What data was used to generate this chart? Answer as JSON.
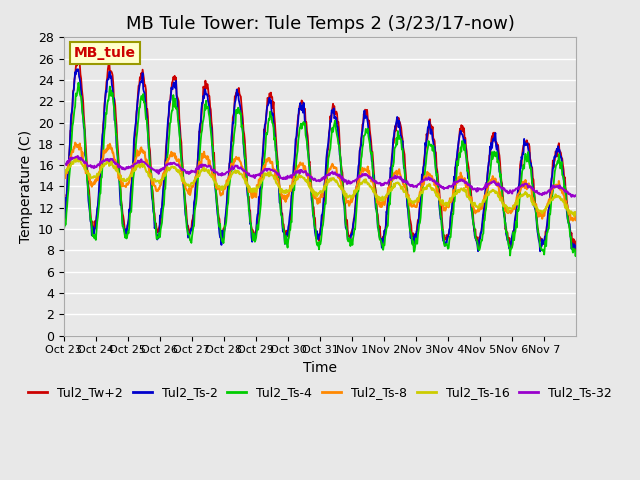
{
  "title": "MB Tule Tower: Tule Temps 2 (3/23/17-now)",
  "xlabel": "Time",
  "ylabel": "Temperature (C)",
  "ylim": [
    0,
    28
  ],
  "yticks": [
    0,
    2,
    4,
    6,
    8,
    10,
    12,
    14,
    16,
    18,
    20,
    22,
    24,
    26,
    28
  ],
  "xtick_labels": [
    "Oct 23",
    "Oct 24",
    "Oct 25",
    "Oct 26",
    "Oct 27",
    "Oct 28",
    "Oct 29",
    "Oct 30",
    "Oct 31",
    "Nov 1",
    "Nov 2",
    "Nov 3",
    "Nov 4",
    "Nov 5",
    "Nov 6",
    "Nov 7"
  ],
  "bg_color": "#e8e8e8",
  "plot_bg_color": "#e8e8e8",
  "grid_color": "#ffffff",
  "series": [
    {
      "label": "Tul2_Tw+2",
      "color": "#cc0000"
    },
    {
      "label": "Tul2_Ts-2",
      "color": "#0000cc"
    },
    {
      "label": "Tul2_Ts-4",
      "color": "#00cc00"
    },
    {
      "label": "Tul2_Ts-8",
      "color": "#ff8800"
    },
    {
      "label": "Tul2_Ts-16",
      "color": "#cccc00"
    },
    {
      "label": "Tul2_Ts-32",
      "color": "#9900cc"
    }
  ],
  "legend_box_color": "#ffffcc",
  "legend_box_edge": "#999900",
  "legend_text": "MB_tule",
  "legend_text_color": "#cc0000",
  "title_fontsize": 13,
  "axis_fontsize": 10,
  "tick_fontsize": 9,
  "legend_fontsize": 9,
  "n_days": 16
}
